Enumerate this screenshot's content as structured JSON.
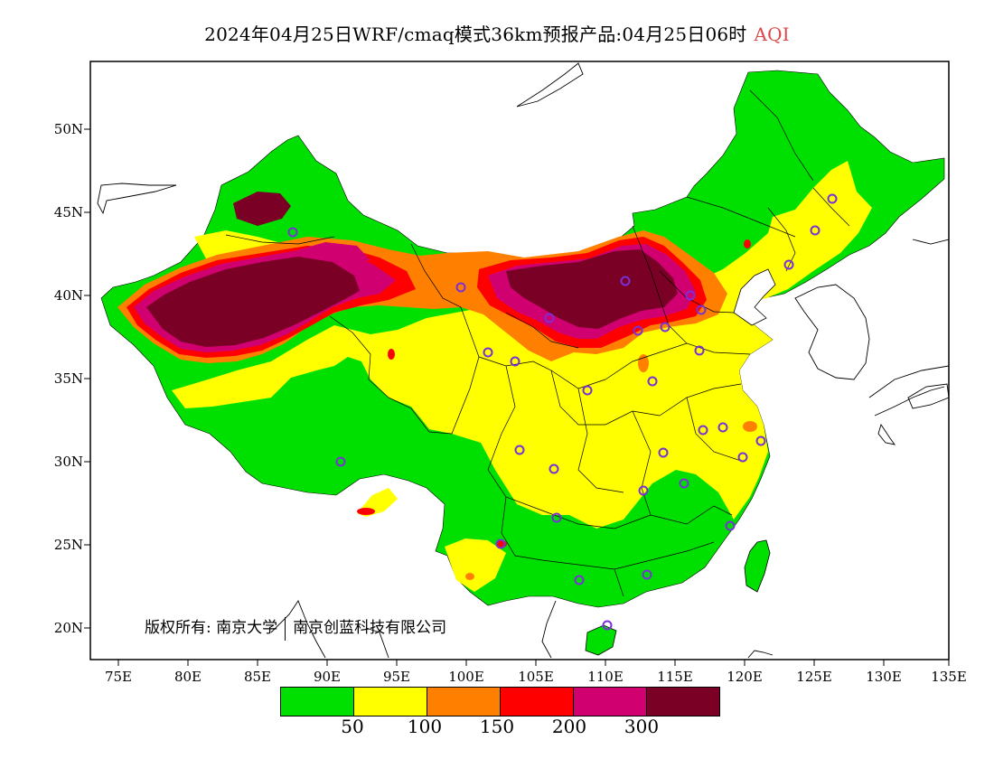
{
  "title": {
    "main": "2024年04月25日WRF/cmaq模式36km预报产品:04月25日06时",
    "variable": "AQI"
  },
  "axes": {
    "y_ticks": [
      "50N",
      "45N",
      "40N",
      "35N",
      "30N",
      "25N",
      "20N"
    ],
    "x_ticks": [
      "75E",
      "80E",
      "85E",
      "90E",
      "95E",
      "100E",
      "105E",
      "110E",
      "115E",
      "120E",
      "125E",
      "130E",
      "135E"
    ]
  },
  "legend": {
    "colors": [
      "#00e000",
      "#ffff00",
      "#ff8000",
      "#ff0000",
      "#d10070",
      "#7a0026"
    ],
    "labels": [
      "50",
      "100",
      "150",
      "200",
      "300"
    ]
  },
  "copyright": {
    "owner_label": "版权所有: 南京大学",
    "company": "南京创蓝科技有限公司"
  }
}
